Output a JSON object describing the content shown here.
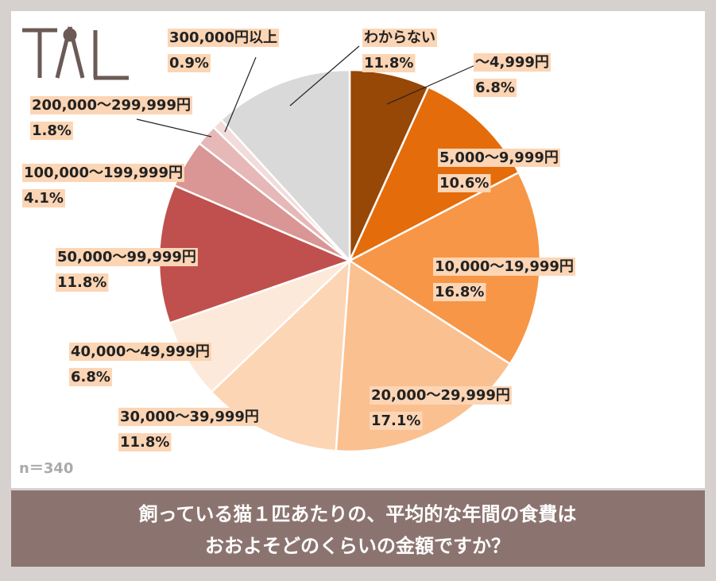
{
  "chart_data": {
    "type": "pie",
    "title": [
      "飼っている猫１匹あたりの、平均的な年間の食費は",
      "おおよそどのくらいの金額ですか？"
    ],
    "note": "n＝340",
    "categories": [
      "～4,999円",
      "5,000～9,999円",
      "10,000～19,999円",
      "20,000～29,999円",
      "30,000～39,999円",
      "40,000～49,999円",
      "50,000～99,999円",
      "100,000～199,999円",
      "200,000～299,999円",
      "300,000円以上",
      "わからない"
    ],
    "values": [
      6.8,
      10.6,
      16.8,
      17.1,
      11.8,
      6.8,
      11.8,
      4.1,
      1.8,
      0.9,
      11.8
    ],
    "value_labels": [
      "6.8%",
      "10.6%",
      "16.8%",
      "17.1%",
      "11.8%",
      "6.8%",
      "11.8%",
      "4.1%",
      "1.8%",
      "0.9%",
      "11.8%"
    ],
    "colors": [
      "#974706",
      "#e46c0a",
      "#f79646",
      "#fac090",
      "#fcd5b5",
      "#fde9d9",
      "#c0504d",
      "#d99694",
      "#e6b9b8",
      "#f2dcdb",
      "#d9d9d9"
    ]
  }
}
